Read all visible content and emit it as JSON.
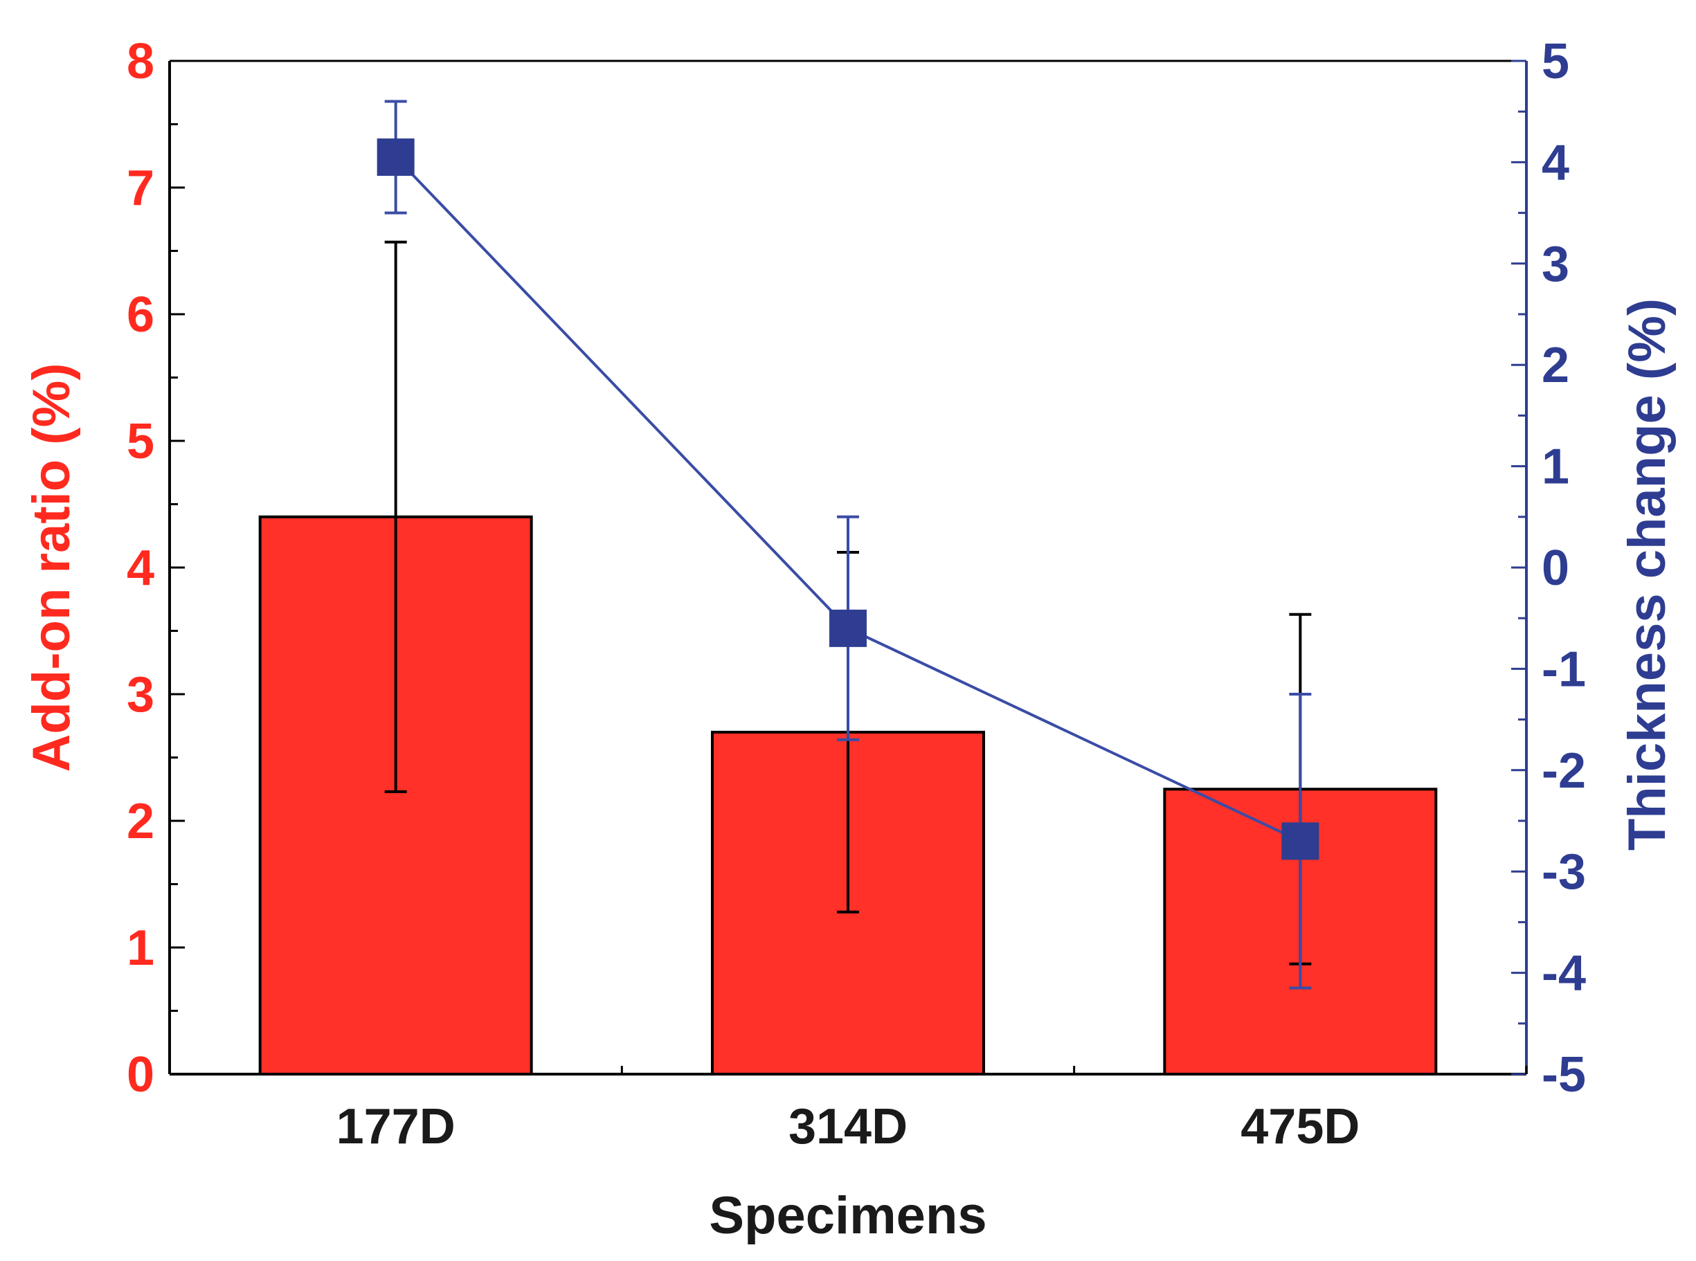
{
  "chart_data": {
    "type": "bar",
    "categories": [
      "177D",
      "314D",
      "475D"
    ],
    "xlabel": "Specimens",
    "series": [
      {
        "name": "Add-on ratio (%)",
        "type": "bar",
        "axis": "left",
        "values": [
          4.4,
          2.7,
          2.25
        ],
        "error": [
          2.17,
          1.42,
          1.38
        ]
      },
      {
        "name": "Thickness change (%)",
        "type": "line",
        "axis": "right",
        "values": [
          4.05,
          -0.6,
          -2.7
        ],
        "error": [
          0.55,
          1.1,
          1.45
        ]
      }
    ],
    "y_left": {
      "label": "Add-on ratio (%)",
      "lim": [
        0,
        8
      ],
      "ticks": [
        0,
        1,
        2,
        3,
        4,
        5,
        6,
        7,
        8
      ],
      "minor_step": 0.5
    },
    "y_right": {
      "label": "Thickness change (%)",
      "lim": [
        -5,
        5
      ],
      "ticks": [
        -5,
        -4,
        -3,
        -2,
        -1,
        0,
        1,
        2,
        3,
        4,
        5
      ],
      "minor_step": 0.5
    },
    "grid": false,
    "legend": "none",
    "colors": {
      "bar_fill": "#ff3128",
      "left_axis": "#ff2a1f",
      "right_axis": "#2e3d91",
      "line": "#3a4ca6",
      "marker": "#2e3d91",
      "bar_error": "#000000",
      "text": "#1a1a1a"
    }
  }
}
